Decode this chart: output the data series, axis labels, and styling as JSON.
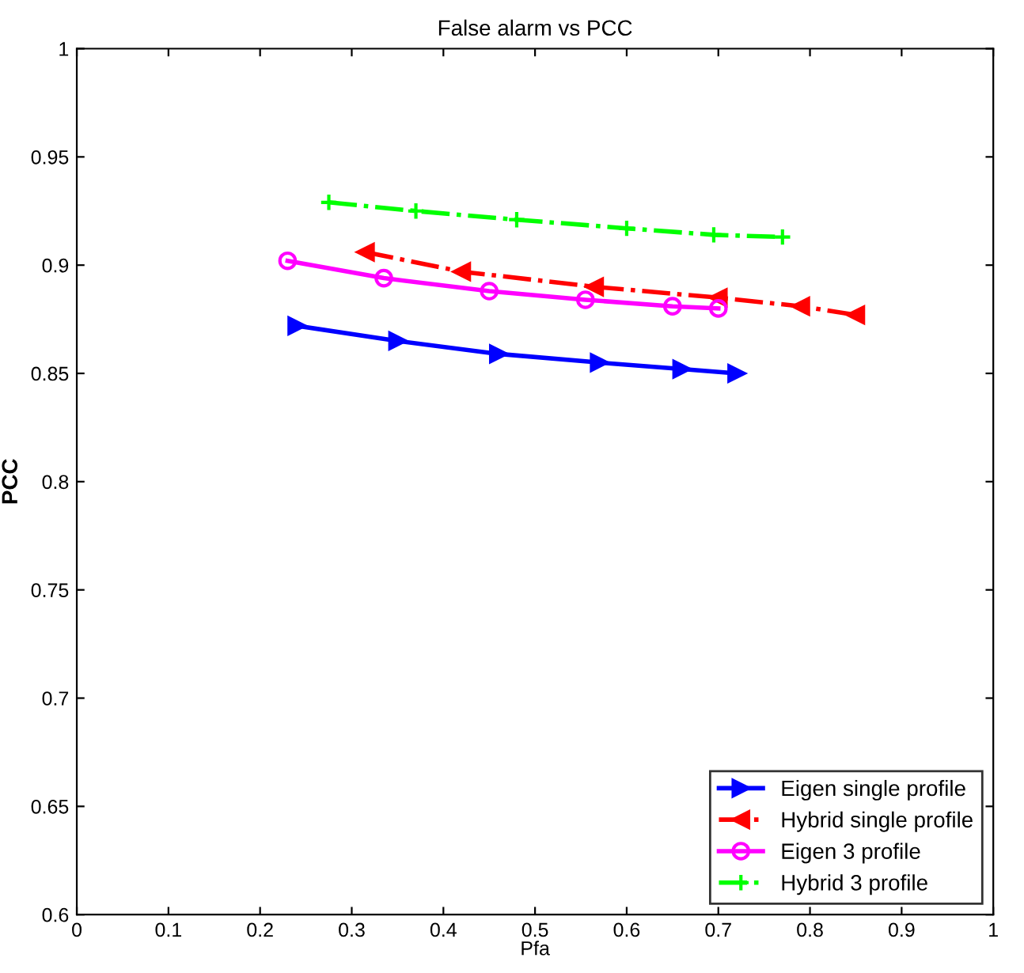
{
  "chart_data": {
    "type": "line",
    "title": "False alarm vs PCC",
    "xlabel": "Pfa",
    "ylabel": "PCC",
    "xlim": [
      0,
      1
    ],
    "ylim": [
      0.6,
      1
    ],
    "xticks": [
      0,
      0.1,
      0.2,
      0.3,
      0.4,
      0.5,
      0.6,
      0.7,
      0.8,
      0.9,
      1
    ],
    "yticks": [
      0.6,
      0.65,
      0.7,
      0.75,
      0.8,
      0.85,
      0.9,
      0.95,
      1
    ],
    "grid": false,
    "legend": "bottom right",
    "series": [
      {
        "name": "Eigen single profile",
        "color": "#0000ff",
        "marker": "triangle-right",
        "line_style": "solid",
        "x": [
          0.24,
          0.35,
          0.46,
          0.57,
          0.66,
          0.72
        ],
        "values": [
          0.872,
          0.865,
          0.859,
          0.855,
          0.852,
          0.85
        ]
      },
      {
        "name": "Hybrid single profile",
        "color": "#ff0000",
        "marker": "triangle-left",
        "line_style": "dashdot",
        "x": [
          0.315,
          0.42,
          0.565,
          0.7,
          0.79,
          0.85
        ],
        "values": [
          0.906,
          0.897,
          0.89,
          0.885,
          0.881,
          0.877
        ]
      },
      {
        "name": "Eigen 3 profile",
        "color": "#ff00ff",
        "marker": "circle",
        "line_style": "solid",
        "x": [
          0.23,
          0.335,
          0.45,
          0.555,
          0.65,
          0.7
        ],
        "values": [
          0.902,
          0.894,
          0.888,
          0.884,
          0.881,
          0.88
        ]
      },
      {
        "name": "Hybrid 3 profile",
        "color": "#00ff00",
        "marker": "cross",
        "line_style": "dashdot",
        "x": [
          0.275,
          0.37,
          0.48,
          0.6,
          0.695,
          0.77
        ],
        "values": [
          0.929,
          0.925,
          0.921,
          0.917,
          0.914,
          0.913
        ]
      }
    ]
  }
}
